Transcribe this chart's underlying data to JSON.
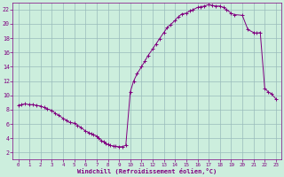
{
  "line_color": "#800080",
  "bg_color": "#cceedd",
  "grid_color": "#99bbbb",
  "xlabel": "Windchill (Refroidissement éolien,°C)",
  "xlabel_color": "#800080",
  "tick_color": "#800080",
  "spine_color": "#800080",
  "ylim": [
    1,
    23
  ],
  "xlim": [
    -0.5,
    23.5
  ],
  "yticks": [
    2,
    4,
    6,
    8,
    10,
    12,
    14,
    16,
    18,
    20,
    22
  ],
  "xticks": [
    0,
    1,
    2,
    3,
    4,
    5,
    6,
    7,
    8,
    9,
    10,
    11,
    12,
    13,
    14,
    15,
    16,
    17,
    18,
    19,
    20,
    21,
    22,
    23
  ],
  "hours": [
    0,
    0.3,
    0.6,
    1.0,
    1.3,
    1.6,
    2.0,
    2.3,
    2.6,
    3.0,
    3.3,
    3.6,
    4.0,
    4.3,
    4.6,
    5.0,
    5.3,
    5.6,
    6.0,
    6.3,
    6.5,
    6.7,
    7.0,
    7.2,
    7.4,
    7.6,
    7.8,
    8.0,
    8.2,
    8.5,
    8.7,
    9.0,
    9.3,
    9.6,
    10.0,
    10.3,
    10.6,
    11.0,
    11.3,
    11.6,
    12.0,
    12.3,
    12.6,
    13.0,
    13.3,
    13.6,
    14.0,
    14.3,
    14.6,
    15.0,
    15.3,
    15.6,
    16.0,
    16.3,
    16.6,
    17.0,
    17.3,
    17.6,
    18.0,
    18.3,
    18.6,
    19.0,
    19.3,
    20.0,
    20.5,
    21.0,
    21.3,
    21.6,
    22.0,
    22.3,
    22.6,
    23.0
  ],
  "values": [
    8.6,
    8.7,
    8.8,
    8.7,
    8.7,
    8.6,
    8.5,
    8.3,
    8.1,
    7.9,
    7.5,
    7.2,
    6.8,
    6.5,
    6.2,
    6.1,
    5.8,
    5.5,
    5.0,
    4.8,
    4.6,
    4.5,
    4.3,
    4.0,
    3.7,
    3.5,
    3.3,
    3.1,
    3.0,
    2.9,
    2.85,
    2.8,
    2.82,
    3.0,
    10.5,
    12.0,
    13.0,
    14.0,
    14.8,
    15.6,
    16.5,
    17.2,
    17.9,
    18.8,
    19.5,
    19.9,
    20.5,
    21.0,
    21.4,
    21.5,
    21.8,
    22.0,
    22.3,
    22.4,
    22.5,
    22.7,
    22.6,
    22.5,
    22.5,
    22.3,
    22.0,
    21.5,
    21.3,
    21.2,
    19.2,
    18.8,
    18.7,
    18.8,
    11.0,
    10.5,
    10.2,
    9.5
  ]
}
